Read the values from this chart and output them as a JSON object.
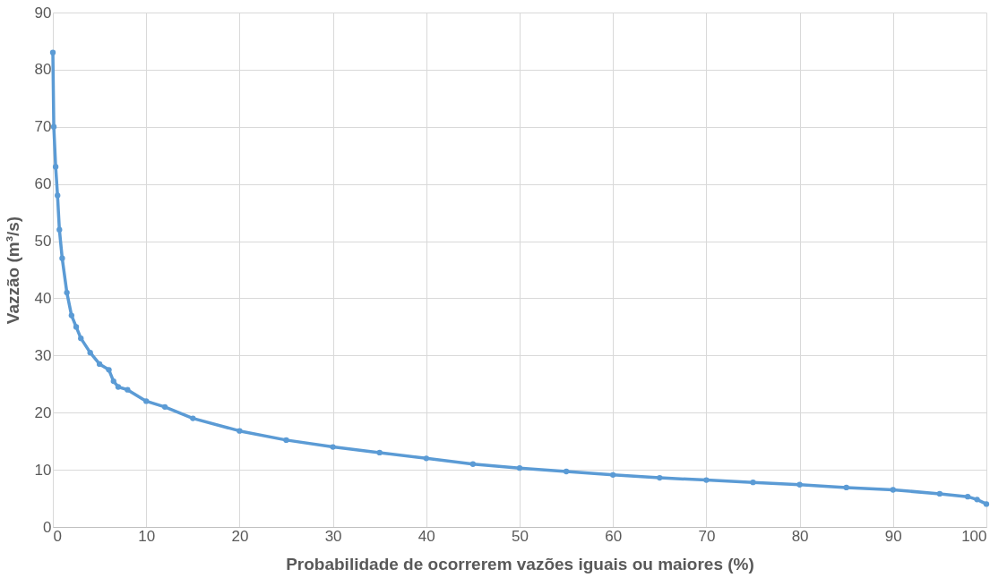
{
  "chart_data": {
    "type": "line",
    "xlabel": "Probabilidade de ocorrerem vazões iguais ou maiores (%)",
    "ylabel": "Vazzão (m³/s)",
    "xlim": [
      0,
      100
    ],
    "xticks": [
      0,
      10,
      20,
      30,
      40,
      50,
      60,
      70,
      80,
      90,
      100
    ],
    "ylim": [
      0,
      90
    ],
    "yticks": [
      0,
      10,
      20,
      30,
      40,
      50,
      60,
      70,
      80,
      90
    ],
    "grid": true,
    "marker": "circle",
    "line_style": "solid",
    "series": [
      {
        "color": "#5b9bd5",
        "x": [
          0,
          0.1,
          0.3,
          0.5,
          0.7,
          1,
          1.5,
          2,
          2.5,
          3,
          4,
          5,
          6,
          6.5,
          7,
          8,
          10,
          12,
          15,
          20,
          25,
          30,
          35,
          40,
          45,
          50,
          55,
          60,
          65,
          70,
          75,
          80,
          85,
          90,
          95,
          98,
          99,
          100
        ],
        "values": [
          83,
          70,
          63,
          58,
          52,
          47,
          41,
          37,
          35,
          33,
          30.5,
          28.5,
          27.5,
          25.5,
          24.5,
          24,
          22,
          21,
          19,
          16.8,
          15.2,
          14,
          13,
          12,
          11,
          10.3,
          9.7,
          9.1,
          8.6,
          8.2,
          7.8,
          7.4,
          6.9,
          6.5,
          5.8,
          5.3,
          4.8,
          4
        ]
      }
    ]
  }
}
